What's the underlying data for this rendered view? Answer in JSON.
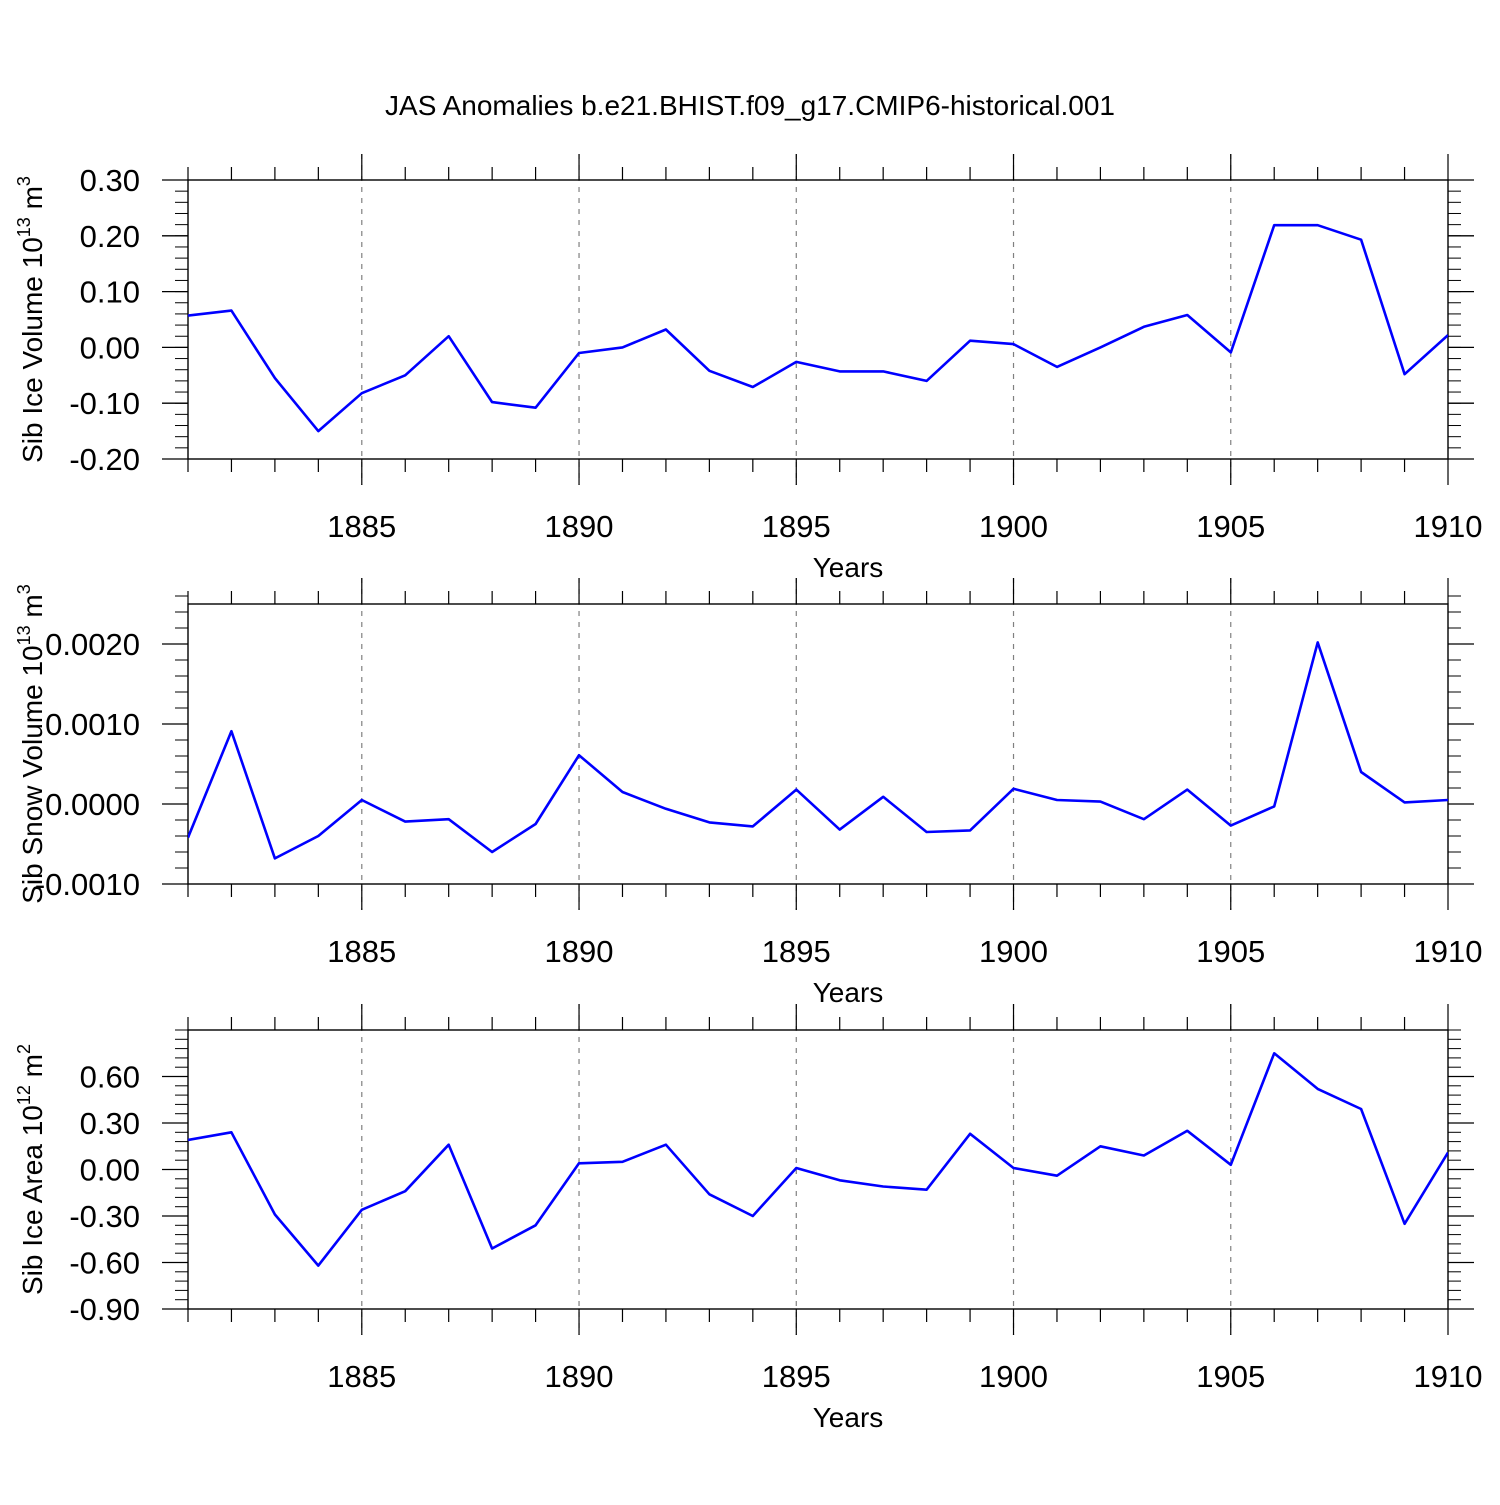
{
  "title": "JAS Anomalies b.e21.BHIST.f09_g17.CMIP6-historical.001",
  "colors": {
    "line": "#0000ff",
    "axis": "#000000",
    "grid": "#808080"
  },
  "chart_data": [
    {
      "type": "line",
      "ylabel": "Sib Ice Volume 10",
      "ylabel_exp": "13",
      "ylabel_unit": " m",
      "ylabel_unit_exp": "3",
      "xlabel": "Years",
      "xlim": [
        1881,
        1910
      ],
      "ylim": [
        -0.2,
        0.3
      ],
      "ytick_values": [
        -0.2,
        -0.1,
        0.0,
        0.1,
        0.2,
        0.3
      ],
      "ytick_labels": [
        "-0.20",
        "-0.10",
        "0.00",
        "0.10",
        "0.20",
        "0.30"
      ],
      "yminor_step": 0.02,
      "xtick_values": [
        1885,
        1890,
        1895,
        1900,
        1905,
        1910
      ],
      "xtick_labels": [
        "1885",
        "1890",
        "1895",
        "1900",
        "1905",
        "1910"
      ],
      "grid_x": true,
      "series": [
        {
          "name": "Sib Ice Volume",
          "x": [
            1881,
            1882,
            1883,
            1884,
            1885,
            1886,
            1887,
            1888,
            1889,
            1890,
            1891,
            1892,
            1893,
            1894,
            1895,
            1896,
            1897,
            1898,
            1899,
            1900,
            1901,
            1902,
            1903,
            1904,
            1905,
            1906,
            1907,
            1908,
            1909,
            1910
          ],
          "values": [
            0.057,
            0.066,
            -0.055,
            -0.15,
            -0.082,
            -0.05,
            0.02,
            -0.098,
            -0.108,
            -0.01,
            0.0,
            0.032,
            -0.042,
            -0.071,
            -0.026,
            -0.043,
            -0.043,
            -0.06,
            0.012,
            0.006,
            -0.035,
            0.0,
            0.037,
            0.058,
            -0.009,
            0.219,
            0.219,
            0.193,
            -0.048,
            0.022
          ]
        }
      ]
    },
    {
      "type": "line",
      "ylabel": "Sib Snow Volume 10",
      "ylabel_exp": "13",
      "ylabel_unit": " m",
      "ylabel_unit_exp": "3",
      "xlabel": "Years",
      "xlim": [
        1881,
        1910
      ],
      "ylim": [
        -0.001,
        0.0025
      ],
      "ytick_values": [
        -0.001,
        0.0,
        0.001,
        0.002
      ],
      "ytick_labels": [
        "-0.0010",
        "0.0000",
        "0.0010",
        "0.0020"
      ],
      "yminor_step": 0.0002,
      "xtick_values": [
        1885,
        1890,
        1895,
        1900,
        1905,
        1910
      ],
      "xtick_labels": [
        "1885",
        "1890",
        "1895",
        "1900",
        "1905",
        "1910"
      ],
      "grid_x": true,
      "series": [
        {
          "name": "Sib Snow Volume",
          "x": [
            1881,
            1882,
            1883,
            1884,
            1885,
            1886,
            1887,
            1888,
            1889,
            1890,
            1891,
            1892,
            1893,
            1894,
            1895,
            1896,
            1897,
            1898,
            1899,
            1900,
            1901,
            1902,
            1903,
            1904,
            1905,
            1906,
            1907,
            1908,
            1909,
            1910
          ],
          "values": [
            -0.00042,
            0.00091,
            -0.00068,
            -0.0004,
            5e-05,
            -0.00022,
            -0.00019,
            -0.0006,
            -0.00025,
            0.00061,
            0.00015,
            -6e-05,
            -0.00023,
            -0.00028,
            0.00018,
            -0.00032,
            9e-05,
            -0.00035,
            -0.00033,
            0.00019,
            5e-05,
            3e-05,
            -0.00019,
            0.00018,
            -0.00027,
            -3e-05,
            0.00202,
            0.0004,
            2e-05,
            5e-05
          ]
        }
      ]
    },
    {
      "type": "line",
      "ylabel": "Sib Ice Area 10",
      "ylabel_exp": "12",
      "ylabel_unit": " m",
      "ylabel_unit_exp": "2",
      "xlabel": "Years",
      "xlim": [
        1881,
        1910
      ],
      "ylim": [
        -0.9,
        0.9
      ],
      "ytick_values": [
        -0.9,
        -0.6,
        -0.3,
        0.0,
        0.3,
        0.6
      ],
      "ytick_labels": [
        "-0.90",
        "-0.60",
        "-0.30",
        "0.00",
        "0.30",
        "0.60"
      ],
      "yminor_step": 0.06,
      "xtick_values": [
        1885,
        1890,
        1895,
        1900,
        1905,
        1910
      ],
      "xtick_labels": [
        "1885",
        "1890",
        "1895",
        "1900",
        "1905",
        "1910"
      ],
      "grid_x": true,
      "series": [
        {
          "name": "Sib Ice Area",
          "x": [
            1881,
            1882,
            1883,
            1884,
            1885,
            1886,
            1887,
            1888,
            1889,
            1890,
            1891,
            1892,
            1893,
            1894,
            1895,
            1896,
            1897,
            1898,
            1899,
            1900,
            1901,
            1902,
            1903,
            1904,
            1905,
            1906,
            1907,
            1908,
            1909,
            1910
          ],
          "values": [
            0.19,
            0.24,
            -0.29,
            -0.62,
            -0.26,
            -0.14,
            0.16,
            -0.51,
            -0.36,
            0.04,
            0.05,
            0.16,
            -0.16,
            -0.3,
            0.01,
            -0.07,
            -0.11,
            -0.13,
            0.23,
            0.01,
            -0.04,
            0.15,
            0.09,
            0.25,
            0.03,
            0.75,
            0.52,
            0.39,
            -0.35,
            0.11
          ]
        }
      ]
    }
  ]
}
